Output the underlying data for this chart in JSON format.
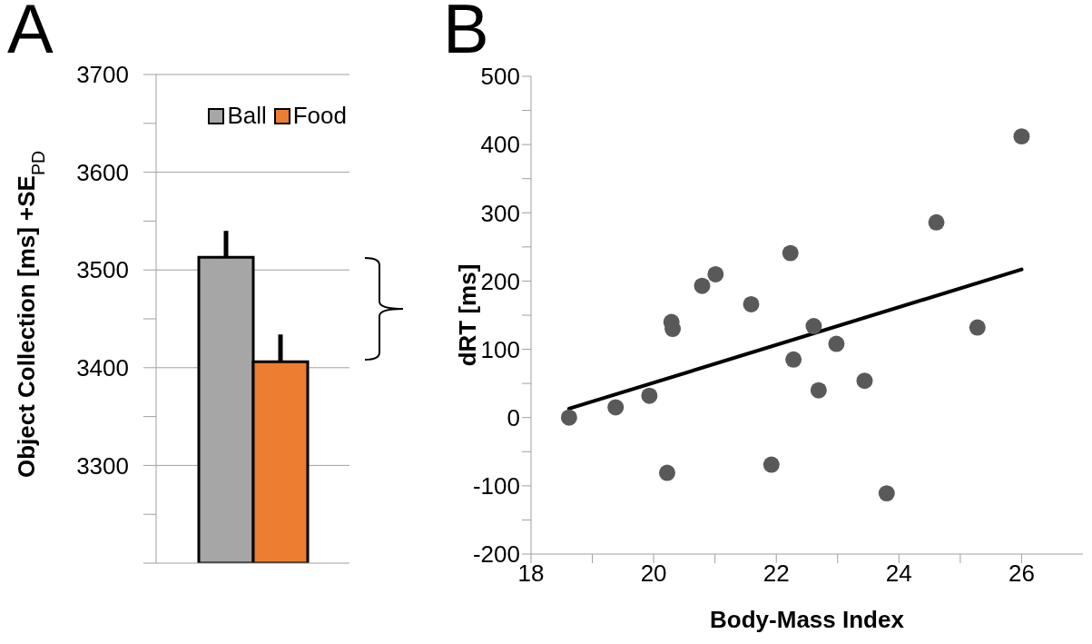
{
  "chart_data": [
    {
      "type": "bar",
      "annotations": [
        "A"
      ],
      "ylabel": "Object Collection [ms] +SE$_{PD}$",
      "categories": [
        null
      ],
      "series": [
        {
          "name": "Ball",
          "color": "#a6a6a6",
          "values": [
            3513
          ],
          "errors": [
            [
              3513,
              3540
            ]
          ]
        },
        {
          "name": "Food",
          "color": "#ed7d31",
          "values": [
            3406
          ],
          "errors": [
            [
              3406,
              3434
            ]
          ]
        }
      ],
      "ylim": [
        3200,
        3700
      ],
      "yticks": [
        {
          "value": 3200,
          "label": null
        },
        {
          "value": 3250,
          "label": null
        },
        3300,
        {
          "value": 3350,
          "label": null
        },
        3400,
        {
          "value": 3450,
          "label": null
        },
        3500,
        {
          "value": 3550,
          "label": null
        },
        3600,
        {
          "value": 3650,
          "label": null
        },
        3700
      ],
      "grid": "y",
      "legend": "top right"
    },
    {
      "type": "scatter",
      "annotations": [
        "B"
      ],
      "xlabel": "Body-Mass Index",
      "ylabel": "dRT [ms]",
      "series": [
        {
          "color": "#595959",
          "x": [
            18.62,
            19.38,
            19.93,
            20.29,
            20.31,
            20.22,
            20.79,
            21.01,
            21.59,
            21.92,
            22.23,
            22.28,
            22.61,
            22.69,
            22.98,
            23.44,
            23.8,
            24.61,
            25.28,
            26.0
          ],
          "values": [
            0,
            15,
            32,
            140,
            130,
            -81,
            193,
            210,
            166,
            -69,
            241,
            85,
            134,
            40,
            108,
            54,
            -111,
            286,
            132,
            412
          ]
        },
        {
          "type": "line",
          "color": "#000000",
          "x": [
            18.62,
            26.0
          ],
          "values": [
            13,
            217
          ],
          "marker": "none"
        }
      ],
      "xlim": [
        18,
        27
      ],
      "xticks": [
        18,
        {
          "value": 19,
          "label": null
        },
        20,
        {
          "value": 21,
          "label": null
        },
        22,
        {
          "value": 23,
          "label": null
        },
        24,
        {
          "value": 25,
          "label": null
        },
        26
      ],
      "ylim": [
        -200,
        500
      ],
      "yticks": [
        -200,
        {
          "value": -150,
          "label": null
        },
        -100,
        {
          "value": -50,
          "label": null
        },
        0,
        {
          "value": 50,
          "label": null
        },
        100,
        {
          "value": 150,
          "label": null
        },
        200,
        {
          "value": 250,
          "label": null
        },
        300,
        {
          "value": 350,
          "label": null
        },
        400,
        {
          "value": 450,
          "label": null
        },
        500
      ],
      "grid": false,
      "marker": "circle"
    }
  ]
}
